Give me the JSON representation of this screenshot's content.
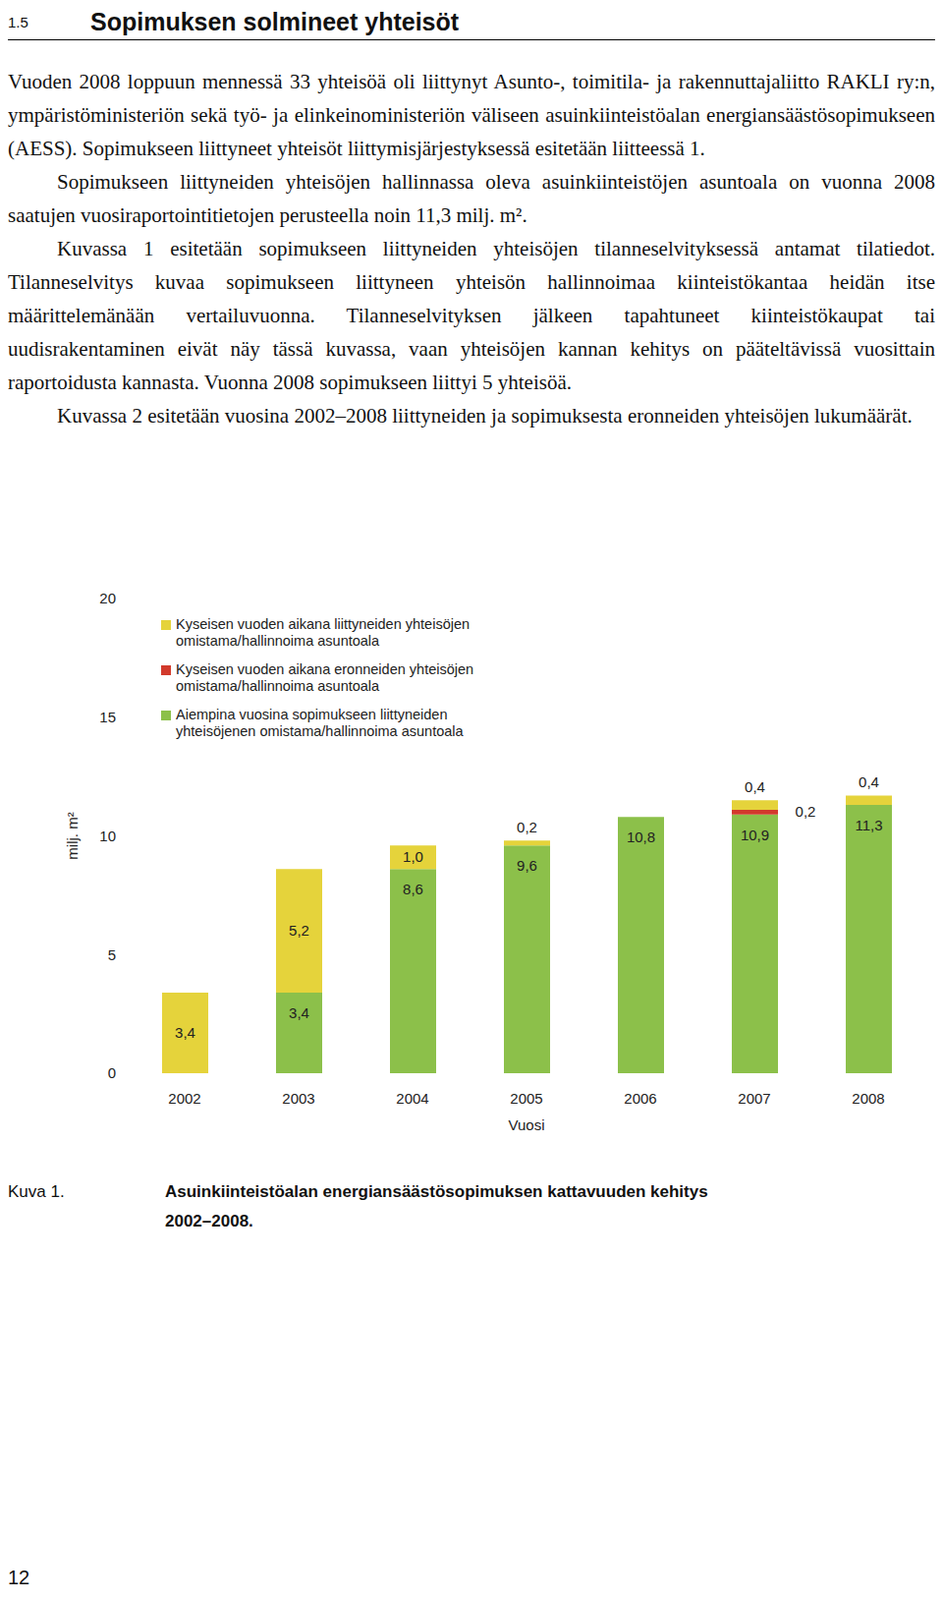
{
  "header": {
    "section_number": "1.5",
    "title": "Sopimuksen solmineet yhteisöt"
  },
  "paragraphs": [
    "Vuoden 2008 loppuun mennessä 33 yhteisöä oli liittynyt Asunto-, toimitila- ja rakennuttajaliitto RAKLI ry:n, ympäristöministeriön sekä työ- ja elinkeinoministeriön väliseen asuinkiinteistöalan energiansäästösopimukseen (AESS). Sopimukseen liittyneet yhteisöt liittymisjärjestyksessä esitetään liitteessä 1.",
    "Sopimukseen liittyneiden yhteisöjen hallinnassa oleva asuinkiinteistöjen asuntoala on vuonna 2008 saatujen vuosiraportointitietojen perusteella noin 11,3 milj. m².",
    "Kuvassa 1 esitetään sopimukseen liittyneiden yhteisöjen tilanneselvityksessä antamat tilatiedot. Tilanneselvitys kuvaa sopimukseen liittyneen yhteisön hallinnoimaa kiinteistökantaa heidän itse määrittelemänään vertailuvuonna. Tilanneselvityksen jälkeen tapahtuneet kiinteistökaupat tai uudisrakentaminen eivät näy tässä kuvassa, vaan yhteisöjen kannan kehitys on pääteltävissä vuosittain raportoidusta kannasta. Vuonna 2008 sopimukseen liittyi 5 yhteisöä.",
    "Kuvassa 2 esitetään vuosina 2002–2008 liittyneiden ja sopimuksesta eronneiden yhteisöjen lukumäärät."
  ],
  "chart_data": {
    "type": "bar",
    "stacked": true,
    "data_labels": true,
    "legend": "upper left",
    "x_label": "Vuosi",
    "y_label": "milj. m²",
    "categories": [
      "2002",
      "2003",
      "2004",
      "2005",
      "2006",
      "2007",
      "2008"
    ],
    "ylim": [
      0,
      20
    ],
    "yticks": [
      0,
      5,
      10,
      15,
      20
    ],
    "series": [
      {
        "name": "Kyseisen vuoden aikana liittyneiden yhteisöjen omistama/hallinnoima asuntoala",
        "color": "#e5d33b",
        "values": [
          3.4,
          5.2,
          1.0,
          0.2,
          null,
          0.4,
          0.4
        ],
        "value_labels": [
          "3,4",
          "5,2",
          "1,0",
          "0,2",
          null,
          "0,4",
          "0,4"
        ]
      },
      {
        "name": "Kyseisen vuoden aikana eronneiden yhteisöjen omistama/hallinnoima asuntoala",
        "color": "#d23a2c",
        "values": [
          null,
          null,
          null,
          null,
          null,
          0.2,
          null
        ],
        "value_labels": [
          null,
          null,
          null,
          null,
          null,
          "0,2",
          null
        ]
      },
      {
        "name": "Aiempina vuosina sopimukseen liittyneiden yhteisöjenen omistama/hallinnoima asuntoala",
        "color": "#8cc04a",
        "values": [
          null,
          3.4,
          8.6,
          9.6,
          10.8,
          10.9,
          11.3
        ],
        "value_labels": [
          null,
          "3,4",
          "8,6",
          "9,6",
          "10,8",
          "10,9",
          "11,3"
        ]
      }
    ]
  },
  "caption": {
    "label": "Kuva 1.",
    "text": "Asuinkiinteistöalan energiansäästösopimuksen kattavuuden kehitys 2002–2008."
  },
  "page_number": "12"
}
